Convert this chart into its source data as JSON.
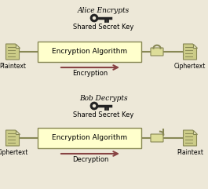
{
  "bg_color": "#ede8d8",
  "box_color": "#ffffcc",
  "box_edge_color": "#888855",
  "line_color": "#888855",
  "arrow_color": "#884444",
  "doc_color": "#cccc88",
  "doc_edge_color": "#888855",
  "lock_color": "#dddd99",
  "lock_edge_color": "#888855",
  "key_color": "#222222",
  "title1": "Alice Encrypts",
  "title2": "Bob Decrypts",
  "key_label": "Shared Secret Key",
  "box_label": "Encryption Algorithm",
  "top_left_label": "Plaintext",
  "top_right_label": "Ciphertext",
  "bot_left_label": "Ciphertext",
  "bot_right_label": "Plaintext",
  "arrow1_label": "Encryption",
  "arrow2_label": "Decryption",
  "figw": 2.65,
  "figh": 2.41,
  "dpi": 100
}
